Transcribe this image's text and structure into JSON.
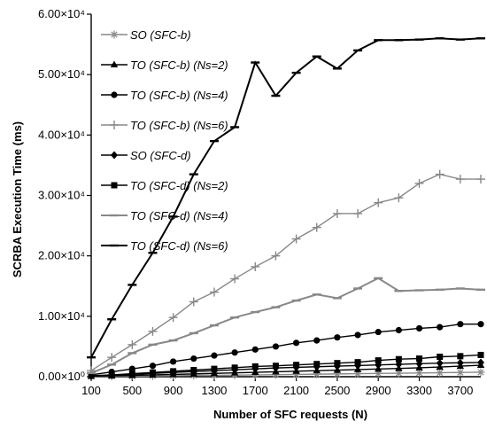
{
  "chart_data": {
    "type": "line",
    "title": "",
    "xlabel": "Number of SFC requests (N)",
    "ylabel": "SCRBA Execution Time (ms)",
    "xlim": [
      100,
      3900
    ],
    "ylim": [
      0,
      60000
    ],
    "x_tick_values": [
      100,
      500,
      900,
      1300,
      1700,
      2100,
      2500,
      2900,
      3300,
      3700
    ],
    "x_tick_labels": [
      "100",
      "500",
      "900",
      "1300",
      "1700",
      "2100",
      "2500",
      "2900",
      "3300",
      "3700"
    ],
    "y_tick_values": [
      0,
      10000,
      20000,
      30000,
      40000,
      50000,
      60000
    ],
    "y_tick_labels": [
      "0.00×10⁰",
      "1.00×10⁴",
      "2.00×10⁴",
      "3.00×10⁴",
      "4.00×10⁴",
      "5.00×10⁴",
      "6.00×10⁴"
    ],
    "grid": false,
    "legend_position": "top-left",
    "x": [
      100,
      300,
      500,
      700,
      900,
      1100,
      1300,
      1500,
      1700,
      1900,
      2100,
      2300,
      2500,
      2700,
      2900,
      3100,
      3300,
      3500,
      3700,
      3900
    ],
    "series": [
      {
        "name": "SO (SFC-b)",
        "color": "#888888",
        "marker": "asterisk",
        "values": [
          50,
          80,
          100,
          130,
          160,
          200,
          230,
          270,
          300,
          340,
          380,
          420,
          460,
          500,
          540,
          580,
          620,
          660,
          700,
          740
        ]
      },
      {
        "name": "TO (SFC-b) (Ns=2)",
        "color": "#000000",
        "marker": "triangle",
        "values": [
          80,
          150,
          220,
          300,
          380,
          460,
          550,
          640,
          730,
          820,
          910,
          1000,
          1090,
          1180,
          1270,
          1370,
          1480,
          1600,
          1750,
          1900
        ]
      },
      {
        "name": "TO (SFC-b) (Ns=4)",
        "color": "#000000",
        "marker": "circle",
        "values": [
          300,
          800,
          1300,
          1800,
          2500,
          3000,
          3500,
          4000,
          4500,
          5000,
          5600,
          6000,
          6500,
          6900,
          7400,
          7700,
          8000,
          8200,
          8700,
          8700
        ]
      },
      {
        "name": "TO (SFC-b) (Ns=6)",
        "color": "#888888",
        "marker": "plus",
        "values": [
          1000,
          3200,
          5300,
          7500,
          9800,
          12400,
          14000,
          16200,
          18200,
          20000,
          22800,
          24700,
          27000,
          27000,
          28800,
          29600,
          32000,
          33500,
          32700,
          32700
        ]
      },
      {
        "name": "SO (SFC-d)",
        "color": "#000000",
        "marker": "diamond",
        "values": [
          100,
          250,
          400,
          550,
          700,
          850,
          1000,
          1150,
          1300,
          1450,
          1550,
          1650,
          1750,
          1850,
          1950,
          2050,
          2150,
          2250,
          2300,
          2350
        ]
      },
      {
        "name": "TO (SFC-d) (Ns=2)",
        "color": "#000000",
        "marker": "square",
        "values": [
          150,
          300,
          500,
          700,
          900,
          1100,
          1300,
          1500,
          1700,
          1800,
          1950,
          2100,
          2250,
          2400,
          2700,
          2900,
          3000,
          3300,
          3400,
          3600
        ]
      },
      {
        "name": "TO (SFC-d) (Ns=4)",
        "color": "#888888",
        "marker": "dash",
        "values": [
          600,
          2000,
          3900,
          5300,
          6000,
          7200,
          8500,
          9800,
          10700,
          11500,
          12600,
          13600,
          13000,
          14600,
          16300,
          14200,
          14300,
          14400,
          14600,
          14400
        ]
      },
      {
        "name": "TO (SFC-d) (Ns=6)",
        "color": "#000000",
        "marker": "dash",
        "values": [
          3200,
          9500,
          15200,
          20500,
          26500,
          33500,
          39000,
          41300,
          52000,
          46500,
          50300,
          53000,
          51000,
          54000,
          55700,
          55700,
          55800,
          56000,
          55800,
          56000
        ]
      }
    ]
  }
}
